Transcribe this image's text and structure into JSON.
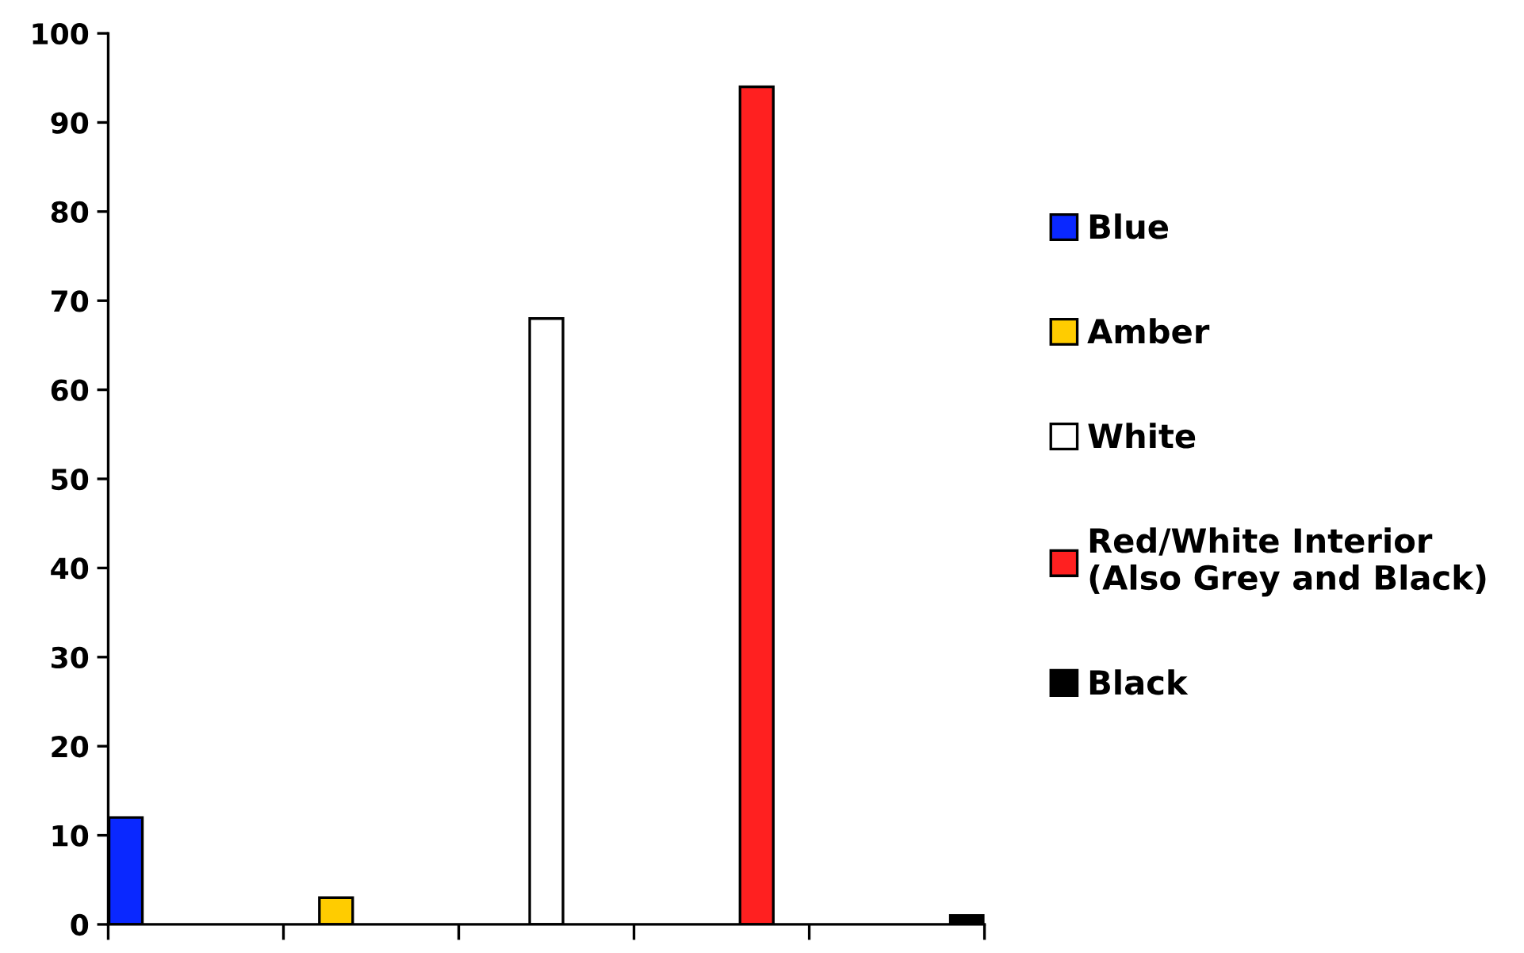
{
  "chart_data": {
    "type": "bar",
    "categories": [
      null,
      null,
      null,
      null,
      null
    ],
    "series": [
      {
        "name": "Blue",
        "color": "#0a28ff",
        "values": [
          12,
          null,
          null,
          null,
          null
        ]
      },
      {
        "name": "Amber",
        "color": "#ffcc00",
        "values": [
          null,
          3,
          null,
          null,
          null
        ]
      },
      {
        "name": "White",
        "color": "#ffffff",
        "values": [
          null,
          null,
          68,
          null,
          null
        ]
      },
      {
        "name": "Red/White Interior\n(Also Grey and Black)",
        "color": "#ff2020",
        "values": [
          null,
          null,
          null,
          94,
          null
        ]
      },
      {
        "name": "Black",
        "color": "#000000",
        "values": [
          null,
          null,
          null,
          null,
          1
        ]
      }
    ],
    "ylim": [
      0,
      100
    ],
    "yticks": [
      0,
      10,
      20,
      30,
      40,
      50,
      60,
      70,
      80,
      90,
      100
    ],
    "tick_labels": "y",
    "grid": false,
    "legend": "right"
  }
}
